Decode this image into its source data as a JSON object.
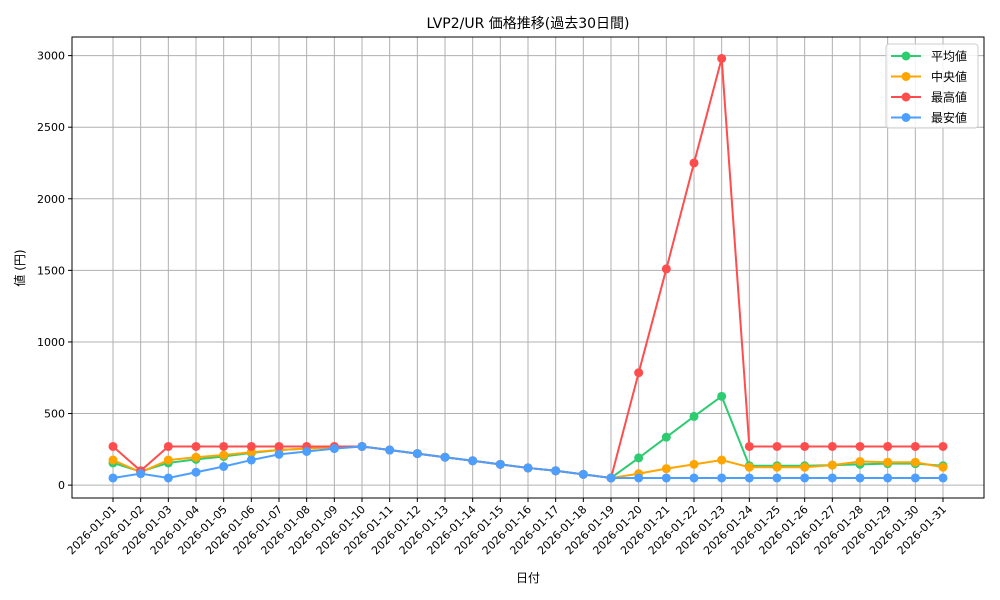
{
  "chart_data": {
    "type": "line",
    "title": "LVP2/UR 価格推移(過去30日間)",
    "xlabel": "日付",
    "ylabel": "値 (円)",
    "ylim": [
      -90,
      3130
    ],
    "yticks": [
      0,
      500,
      1000,
      1500,
      2000,
      2500,
      3000
    ],
    "grid": true,
    "legend_position": "top-right",
    "x": [
      "2026-01-01",
      "2026-01-02",
      "2026-01-03",
      "2026-01-04",
      "2026-01-05",
      "2026-01-06",
      "2026-01-07",
      "2026-01-08",
      "2026-01-09",
      "2026-01-10",
      "2026-01-11",
      "2026-01-12",
      "2026-01-13",
      "2026-01-14",
      "2026-01-15",
      "2026-01-16",
      "2026-01-17",
      "2026-01-18",
      "2026-01-19",
      "2026-01-20",
      "2026-01-21",
      "2026-01-22",
      "2026-01-23",
      "2026-01-24",
      "2026-01-25",
      "2026-01-26",
      "2026-01-27",
      "2026-01-28",
      "2026-01-29",
      "2026-01-30",
      "2026-01-31"
    ],
    "series": [
      {
        "name": "平均値",
        "color": "#2ecc71",
        "values": [
          155,
          95,
          155,
          180,
          200,
          225,
          245,
          255,
          265,
          270,
          245,
          220,
          195,
          170,
          145,
          120,
          100,
          75,
          50,
          190,
          335,
          480,
          620,
          135,
          135,
          135,
          140,
          145,
          150,
          150,
          135
        ]
      },
      {
        "name": "中央値",
        "color": "#ffa500",
        "values": [
          175,
          90,
          175,
          195,
          210,
          230,
          245,
          255,
          265,
          270,
          245,
          220,
          195,
          170,
          145,
          120,
          100,
          75,
          50,
          80,
          115,
          145,
          175,
          125,
          125,
          125,
          140,
          165,
          160,
          160,
          125
        ]
      },
      {
        "name": "最高値",
        "color": "#ff4d4d",
        "values": [
          270,
          100,
          270,
          270,
          270,
          270,
          270,
          270,
          270,
          270,
          245,
          220,
          195,
          170,
          145,
          120,
          100,
          75,
          50,
          785,
          1510,
          2250,
          2980,
          270,
          270,
          270,
          270,
          270,
          270,
          270,
          270
        ]
      },
      {
        "name": "最安値",
        "color": "#4d9fff",
        "values": [
          50,
          80,
          50,
          90,
          130,
          175,
          215,
          235,
          255,
          270,
          245,
          220,
          195,
          170,
          145,
          120,
          100,
          75,
          50,
          50,
          50,
          50,
          50,
          50,
          50,
          50,
          50,
          50,
          50,
          50,
          50
        ]
      }
    ]
  }
}
